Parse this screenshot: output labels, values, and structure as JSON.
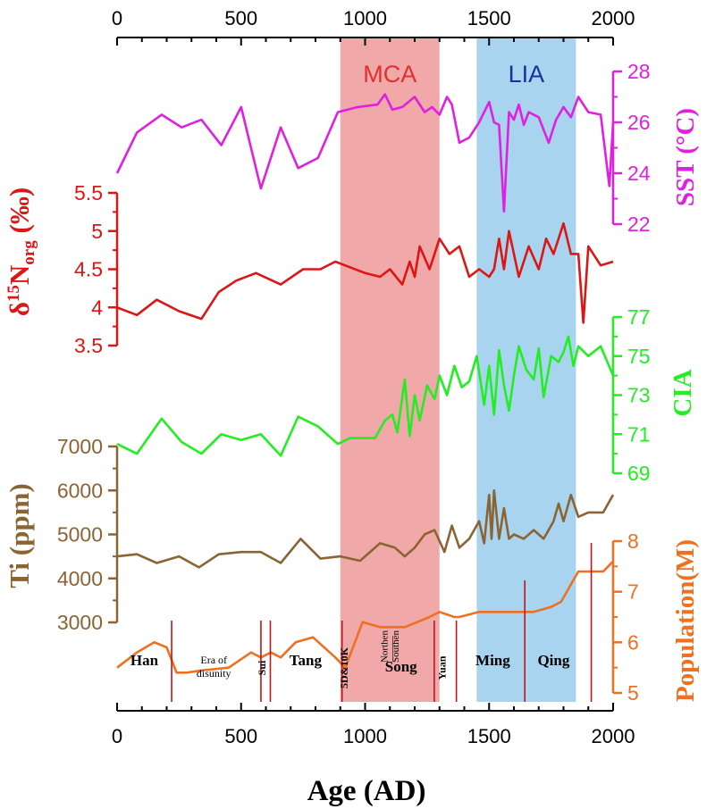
{
  "chart_data": {
    "type": "line",
    "xlabel": "Age (AD)",
    "xlim": [
      0,
      2000
    ],
    "x_ticks": [
      "0",
      "500",
      "1000",
      "1500",
      "2000"
    ],
    "bands": [
      {
        "name": "MCA",
        "range": [
          900,
          1300
        ],
        "color": "#f0a8a8",
        "label_color": "#e03030"
      },
      {
        "name": "LIA",
        "range": [
          1450,
          1850
        ],
        "color": "#a8d4f0",
        "label_color": "#1a2fa0"
      }
    ],
    "series": [
      {
        "name": "SST",
        "ylabel": "SST (°C)",
        "axis_side": "right",
        "color": "#e020e0",
        "ylim": [
          22,
          28
        ],
        "ticks": [
          "22",
          "24",
          "26",
          "28"
        ],
        "x": [
          0,
          80,
          180,
          260,
          340,
          420,
          500,
          580,
          660,
          730,
          810,
          890,
          970,
          1050,
          1080,
          1110,
          1150,
          1200,
          1240,
          1270,
          1300,
          1330,
          1350,
          1380,
          1420,
          1460,
          1500,
          1520,
          1540,
          1560,
          1580,
          1600,
          1620,
          1640,
          1660,
          1700,
          1740,
          1770,
          1800,
          1830,
          1860,
          1900,
          1950,
          1985,
          2000
        ],
        "values": [
          24.0,
          25.6,
          26.3,
          25.8,
          26.1,
          25.1,
          26.6,
          23.4,
          25.8,
          24.2,
          24.6,
          26.4,
          26.6,
          26.7,
          27.1,
          26.5,
          26.6,
          27.0,
          26.4,
          26.6,
          26.3,
          27.0,
          26.7,
          25.2,
          25.4,
          26.0,
          26.8,
          26.0,
          25.9,
          22.5,
          26.4,
          26.1,
          26.7,
          25.9,
          26.4,
          26.2,
          25.2,
          26.1,
          26.6,
          26.2,
          27.0,
          26.4,
          26.3,
          23.5,
          26.0
        ]
      },
      {
        "name": "δ15Norg",
        "ylabel_main": "δ",
        "ylabel_sup": "15",
        "ylabel_mid": "N",
        "ylabel_sub": "org",
        "ylabel_unit": "(‰)",
        "axis_side": "left",
        "color": "#dd1515",
        "ylim": [
          3.5,
          5.5
        ],
        "ticks": [
          "3.5",
          "4",
          "4.5",
          "5",
          "5.5"
        ],
        "x": [
          0,
          80,
          160,
          250,
          340,
          410,
          480,
          560,
          660,
          750,
          820,
          880,
          1000,
          1060,
          1100,
          1150,
          1180,
          1200,
          1220,
          1260,
          1300,
          1340,
          1380,
          1420,
          1460,
          1500,
          1520,
          1540,
          1560,
          1580,
          1600,
          1620,
          1660,
          1700,
          1730,
          1760,
          1800,
          1830,
          1860,
          1880,
          1900,
          1950,
          2000
        ],
        "values": [
          4.0,
          3.9,
          4.1,
          3.95,
          3.85,
          4.2,
          4.35,
          4.45,
          4.3,
          4.5,
          4.5,
          4.6,
          4.45,
          4.4,
          4.5,
          4.3,
          4.6,
          4.4,
          4.8,
          4.5,
          4.9,
          4.7,
          4.8,
          4.4,
          4.5,
          4.4,
          4.5,
          4.9,
          4.5,
          5.0,
          4.7,
          4.4,
          4.8,
          4.5,
          4.9,
          4.7,
          5.1,
          4.7,
          4.7,
          3.8,
          4.8,
          4.55,
          4.6
        ]
      },
      {
        "name": "CIA",
        "ylabel": "CIA",
        "axis_side": "right",
        "color": "#22ee22",
        "ylim": [
          69,
          77
        ],
        "ticks": [
          "69",
          "71",
          "73",
          "75",
          "77"
        ],
        "x": [
          0,
          80,
          180,
          260,
          340,
          420,
          500,
          580,
          660,
          730,
          810,
          890,
          940,
          1000,
          1040,
          1080,
          1110,
          1130,
          1160,
          1180,
          1200,
          1220,
          1250,
          1280,
          1300,
          1330,
          1360,
          1390,
          1420,
          1450,
          1480,
          1500,
          1520,
          1540,
          1560,
          1580,
          1600,
          1620,
          1650,
          1680,
          1700,
          1720,
          1750,
          1780,
          1800,
          1820,
          1840,
          1860,
          1900,
          1950,
          2000
        ],
        "values": [
          70.5,
          70.0,
          71.8,
          70.6,
          70.0,
          71.0,
          70.7,
          71.0,
          69.9,
          71.9,
          71.4,
          70.5,
          70.8,
          70.8,
          70.8,
          71.7,
          72.0,
          71.1,
          73.8,
          70.9,
          73.0,
          71.7,
          73.5,
          72.8,
          74.0,
          73.0,
          74.5,
          73.4,
          73.7,
          75.0,
          72.5,
          74.5,
          72.0,
          75.3,
          73.5,
          72.2,
          74.0,
          75.5,
          74.3,
          73.8,
          75.4,
          72.9,
          75.0,
          74.7,
          75.2,
          76.0,
          74.5,
          75.5,
          75.0,
          75.5,
          74.0
        ]
      },
      {
        "name": "Ti",
        "ylabel": "Ti (ppm)",
        "axis_side": "left",
        "color": "#8b6434",
        "ylim": [
          3000,
          7000
        ],
        "ticks": [
          "3000",
          "4000",
          "5000",
          "6000",
          "7000"
        ],
        "x": [
          0,
          80,
          160,
          250,
          330,
          410,
          500,
          580,
          660,
          740,
          820,
          900,
          980,
          1060,
          1120,
          1160,
          1200,
          1240,
          1280,
          1320,
          1350,
          1380,
          1420,
          1460,
          1480,
          1500,
          1510,
          1520,
          1540,
          1560,
          1580,
          1600,
          1640,
          1680,
          1720,
          1760,
          1780,
          1800,
          1830,
          1860,
          1900,
          1960,
          2000
        ],
        "values": [
          4500,
          4550,
          4350,
          4500,
          4250,
          4550,
          4600,
          4600,
          4350,
          4900,
          4450,
          4500,
          4400,
          4800,
          4700,
          4500,
          4700,
          5000,
          5100,
          4600,
          5200,
          4700,
          4900,
          5300,
          4800,
          5900,
          4900,
          6000,
          4900,
          5600,
          4900,
          5000,
          4900,
          5100,
          4900,
          5300,
          5700,
          5300,
          5900,
          5400,
          5500,
          5500,
          5900
        ]
      },
      {
        "name": "Population",
        "ylabel": "Population(M)",
        "axis_side": "right",
        "color": "#ee7020",
        "ylim": [
          5,
          8
        ],
        "ticks": [
          "5",
          "6",
          "7",
          "8"
        ],
        "x": [
          0,
          80,
          150,
          200,
          240,
          280,
          350,
          450,
          540,
          580,
          620,
          660,
          720,
          790,
          880,
          920,
          990,
          1060,
          1160,
          1260,
          1300,
          1360,
          1380,
          1460,
          1560,
          1640,
          1680,
          1750,
          1790,
          1860,
          1900,
          1960,
          2000
        ],
        "values": [
          5.5,
          5.8,
          6.0,
          5.9,
          5.4,
          5.4,
          5.45,
          5.5,
          5.8,
          5.7,
          5.8,
          5.7,
          6.0,
          6.1,
          5.7,
          5.5,
          6.4,
          6.3,
          6.3,
          6.5,
          6.6,
          6.5,
          6.5,
          6.6,
          6.6,
          6.6,
          6.6,
          6.7,
          6.8,
          7.4,
          7.4,
          7.4,
          7.6
        ]
      }
    ],
    "dynasties": [
      {
        "label": "Han",
        "x": 110,
        "style": "normal"
      },
      {
        "label": "Era of",
        "label2": "disunity",
        "x": 390,
        "style": "small2"
      },
      {
        "label": "Sui",
        "x": 598,
        "style": "vertical"
      },
      {
        "label": "Tang",
        "x": 760,
        "style": "normal"
      },
      {
        "label": "5D&10K",
        "x": 930,
        "style": "vertical"
      },
      {
        "label": "Northen",
        "x": 1090,
        "style": "vertical-small"
      },
      {
        "label": "Southen",
        "x": 1135,
        "style": "vertical-small"
      },
      {
        "label": "Song",
        "x": 1145,
        "style": "normal"
      },
      {
        "label": "Yuan",
        "x": 1325,
        "style": "vertical"
      },
      {
        "label": "Ming",
        "x": 1515,
        "style": "normal"
      },
      {
        "label": "Qing",
        "x": 1760,
        "style": "normal"
      }
    ],
    "dynasty_boundaries": [
      220,
      580,
      618,
      907,
      1279,
      1368,
      1644,
      1912
    ]
  }
}
